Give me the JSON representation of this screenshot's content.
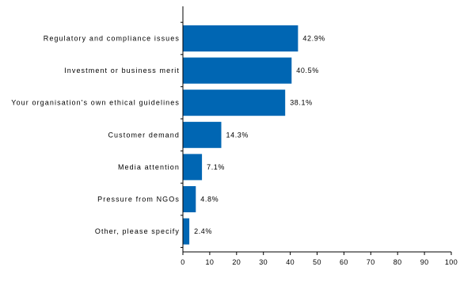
{
  "chart_data": {
    "type": "bar",
    "orientation": "horizontal",
    "categories": [
      "Regulatory and compliance issues",
      "Investment or business merit",
      "Your organisation's own ethical guidelines",
      "Customer demand",
      "Media attention",
      "Pressure from NGOs",
      "Other, please specify"
    ],
    "values": [
      42.9,
      40.5,
      38.1,
      14.3,
      7.1,
      4.8,
      2.4
    ],
    "data_labels": [
      "42.9%",
      "40.5%",
      "38.1%",
      "14.3%",
      "7.1%",
      "4.8%",
      "2.4%"
    ],
    "xlim": [
      0,
      100
    ],
    "xticks": [
      0,
      10,
      20,
      30,
      40,
      50,
      60,
      70,
      80,
      90,
      100
    ],
    "title": "",
    "xlabel": "",
    "ylabel": "",
    "grid": false,
    "legend": "none",
    "bar_color": "#0066b3"
  }
}
